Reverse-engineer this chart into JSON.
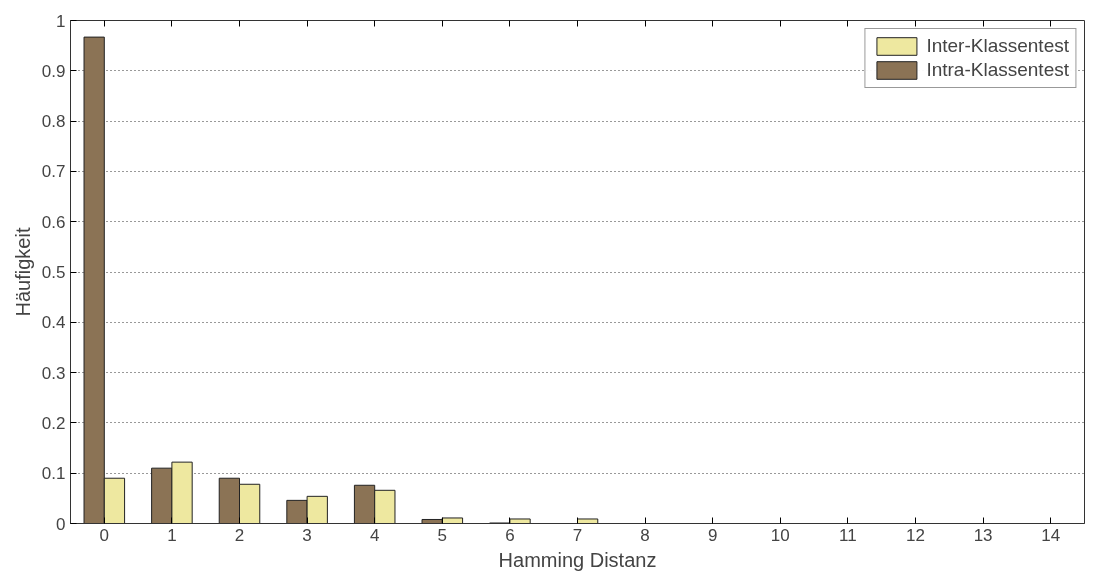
{
  "chart_data": {
    "type": "bar",
    "xlabel": "Hamming Distanz",
    "ylabel": "Häufigkeit",
    "x": [
      0,
      1,
      2,
      3,
      4,
      5,
      6,
      7,
      8,
      9,
      10,
      11,
      12,
      13,
      14
    ],
    "series": [
      {
        "name": "Intra-Klassentest",
        "color": "#8b7355",
        "values": [
          0.967,
          0.11,
          0.09,
          0.046,
          0.076,
          0.008,
          0.001,
          0,
          0,
          0,
          0,
          0,
          0,
          0,
          0
        ]
      },
      {
        "name": "Inter-Klassentest",
        "color": "#eee8a0",
        "values": [
          0.09,
          0.122,
          0.078,
          0.054,
          0.066,
          0.011,
          0.009,
          0.009,
          0,
          0,
          0,
          0,
          0,
          0,
          0
        ]
      }
    ],
    "xlim": [
      -0.5,
      14.5
    ],
    "xticks": [
      0,
      1,
      2,
      3,
      4,
      5,
      6,
      7,
      8,
      9,
      10,
      11,
      12,
      13,
      14
    ],
    "ylim": [
      0,
      1
    ],
    "yticks": [
      0,
      0.1,
      0.2,
      0.3,
      0.4,
      0.5,
      0.6,
      0.7,
      0.8,
      0.9,
      1
    ],
    "grid": "y",
    "legend": "top right"
  }
}
